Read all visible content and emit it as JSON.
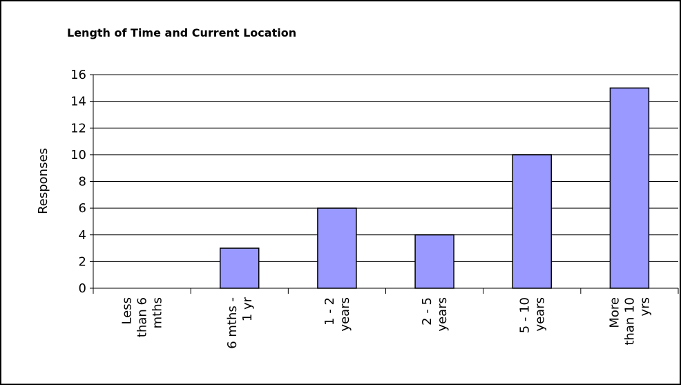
{
  "chart_data": {
    "type": "bar",
    "title": "Length of Time and Current Location",
    "y_label": "Responses",
    "categories": [
      "Less than 6 mths",
      "6 mths - 1 yr",
      "1 - 2 years",
      "2 - 5 years",
      "5 - 10 years",
      "More than 10 yrs"
    ],
    "values": [
      0,
      3,
      6,
      4,
      10,
      15
    ],
    "color": "#9999ff",
    "ylim": [
      0,
      16
    ],
    "yticks": [
      0,
      2,
      4,
      6,
      8,
      10,
      12,
      14,
      16
    ],
    "grid": true
  }
}
